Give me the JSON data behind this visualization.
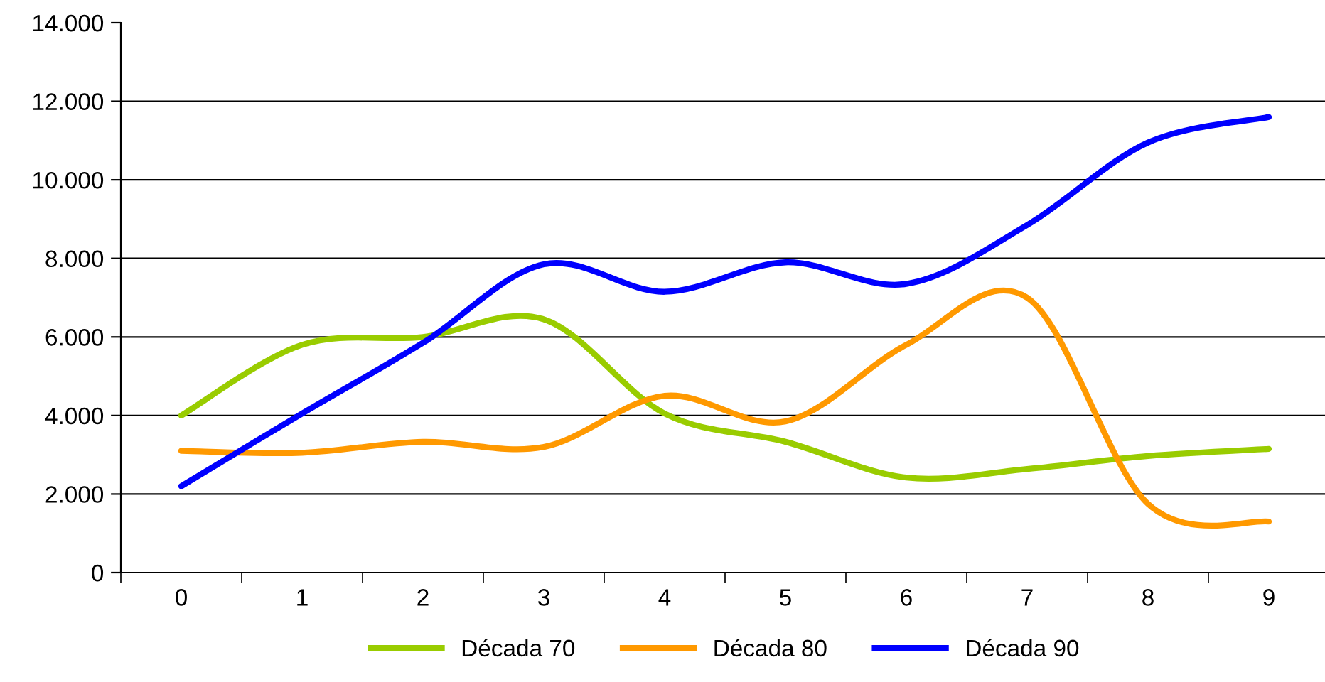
{
  "chart_data": {
    "type": "line",
    "categories": [
      "0",
      "1",
      "2",
      "3",
      "4",
      "5",
      "6",
      "7",
      "8",
      "9"
    ],
    "series": [
      {
        "name": "Década 70",
        "color": "#99cc00",
        "values": [
          4000,
          5800,
          6000,
          6450,
          4050,
          3330,
          2420,
          2640,
          2970,
          3150
        ]
      },
      {
        "name": "Década 80",
        "color": "#ff9900",
        "values": [
          3100,
          3050,
          3330,
          3200,
          4500,
          3850,
          5800,
          7000,
          1750,
          1300
        ]
      },
      {
        "name": "Década 90",
        "color": "#0000ff",
        "values": [
          2200,
          4050,
          5850,
          7850,
          7150,
          7900,
          7350,
          8850,
          10950,
          11600
        ]
      }
    ],
    "ylim": [
      0,
      14000
    ],
    "yticks": [
      {
        "value": 0,
        "label": "0"
      },
      {
        "value": 2000,
        "label": "2.000"
      },
      {
        "value": 4000,
        "label": "4.000"
      },
      {
        "value": 6000,
        "label": "6.000"
      },
      {
        "value": 8000,
        "label": "8.000"
      },
      {
        "value": 10000,
        "label": "10.000"
      },
      {
        "value": 12000,
        "label": "12.000"
      },
      {
        "value": 14000,
        "label": "14.000"
      }
    ],
    "grid": "y",
    "legend": "bottom",
    "marker": "none",
    "line_style": "solid"
  }
}
